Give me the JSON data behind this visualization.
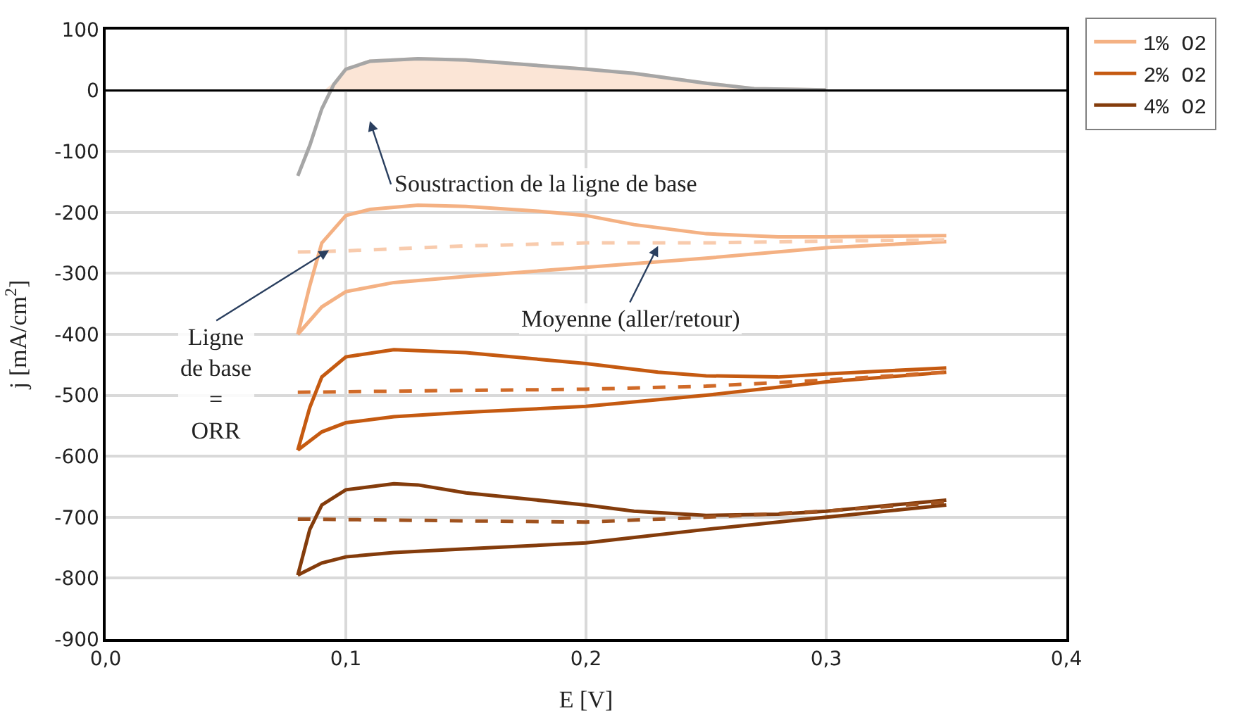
{
  "chart_data": {
    "type": "line",
    "xlabel": "E [V]",
    "ylabel": "j [mA/cm$^{2}$]",
    "xlim": [
      0,
      0.4
    ],
    "xticks": [
      {
        "value": 0,
        "label": "0,0"
      },
      {
        "value": 0.1,
        "label": "0,1"
      },
      {
        "value": 0.2,
        "label": "0,2"
      },
      {
        "value": 0.3,
        "label": "0,3"
      },
      {
        "value": 0.4,
        "label": "0,4"
      }
    ],
    "ylim": [
      -900,
      100
    ],
    "yticks": [
      -900,
      -800,
      -700,
      -600,
      -500,
      -400,
      -300,
      -200,
      -100,
      0,
      100
    ],
    "grid": true,
    "legend": "top right",
    "marker": "none",
    "line_style": "solid",
    "ref_lines": [
      {
        "axis": "y",
        "value": 0,
        "label": null,
        "color": "#000000"
      }
    ],
    "series": [
      {
        "name": "1% O2",
        "color": "#f4b183",
        "x": [
          0.08,
          0.085,
          0.09,
          0.1,
          0.11,
          0.13,
          0.15,
          0.18,
          0.2,
          0.22,
          0.25,
          0.28,
          0.3,
          0.35
        ],
        "values": [
          -400,
          -320,
          -250,
          -205,
          -195,
          -188,
          -190,
          -198,
          -205,
          -220,
          -235,
          -240,
          -240,
          -238
        ]
      },
      {
        "name": "2% O2",
        "color": "#c55a11",
        "x": [
          0.08,
          0.085,
          0.09,
          0.1,
          0.12,
          0.15,
          0.2,
          0.23,
          0.25,
          0.28,
          0.3,
          0.35
        ],
        "values": [
          -590,
          -520,
          -470,
          -437,
          -425,
          -430,
          -448,
          -462,
          -468,
          -470,
          -465,
          -455
        ]
      },
      {
        "name": "4% O2",
        "color": "#843c0c",
        "x": [
          0.08,
          0.085,
          0.09,
          0.1,
          0.12,
          0.13,
          0.15,
          0.2,
          0.22,
          0.25,
          0.28,
          0.3,
          0.35
        ],
        "values": [
          -795,
          -720,
          -680,
          -655,
          -645,
          -647,
          -660,
          -680,
          -690,
          -697,
          -695,
          -690,
          -672
        ]
      },
      {
        "color": "#f4b183",
        "x": [
          0.08,
          0.09,
          0.1,
          0.12,
          0.15,
          0.2,
          0.25,
          0.3,
          0.35
        ],
        "values": [
          -400,
          -355,
          -330,
          -315,
          -305,
          -290,
          -275,
          -258,
          -248
        ]
      },
      {
        "color": "#c55a11",
        "x": [
          0.08,
          0.09,
          0.1,
          0.12,
          0.15,
          0.2,
          0.25,
          0.3,
          0.35
        ],
        "values": [
          -590,
          -560,
          -545,
          -535,
          -528,
          -518,
          -500,
          -478,
          -462
        ]
      },
      {
        "color": "#843c0c",
        "x": [
          0.08,
          0.09,
          0.1,
          0.12,
          0.15,
          0.2,
          0.25,
          0.3,
          0.35
        ],
        "values": [
          -795,
          -775,
          -765,
          -758,
          -752,
          -742,
          -720,
          -700,
          -680
        ]
      },
      {
        "color": "#f8cbad",
        "line_style": "dashed",
        "x": [
          0.08,
          0.1,
          0.15,
          0.2,
          0.25,
          0.3,
          0.35
        ],
        "values": [
          -265,
          -263,
          -255,
          -250,
          -250,
          -247,
          -245
        ]
      },
      {
        "color": "#d06a28",
        "line_style": "dashed",
        "x": [
          0.08,
          0.15,
          0.2,
          0.25,
          0.3,
          0.35
        ],
        "values": [
          -495,
          -492,
          -490,
          -485,
          -475,
          -462
        ]
      },
      {
        "color": "#a0521e",
        "line_style": "dashed",
        "x": [
          0.08,
          0.15,
          0.2,
          0.25,
          0.3,
          0.35
        ],
        "values": [
          -703,
          -706,
          -708,
          -700,
          -690,
          -675
        ]
      },
      {
        "type": "area",
        "color": "#fbe5d6",
        "x": [
          0.092,
          0.095,
          0.1,
          0.11,
          0.13,
          0.15,
          0.2,
          0.22,
          0.25,
          0.27,
          0.3
        ],
        "values": [
          0,
          10,
          35,
          48,
          52,
          50,
          35,
          28,
          12,
          3,
          1
        ]
      },
      {
        "color": "#a6a6a6",
        "x": [
          0.08,
          0.085,
          0.09,
          0.095,
          0.1,
          0.11,
          0.13,
          0.15,
          0.2,
          0.22,
          0.25,
          0.27,
          0.3
        ],
        "values": [
          -140,
          -90,
          -30,
          10,
          35,
          48,
          52,
          50,
          35,
          28,
          12,
          3,
          1
        ]
      }
    ],
    "annotations": [
      "Soustraction de la ligne de base",
      {
        "text": "Ligne\nde base\n=\nORR",
        "x": 0.093,
        "y": -262
      },
      {
        "text": "Moyenne (aller/retour)",
        "x": 0.23,
        "y": -255
      }
    ]
  }
}
